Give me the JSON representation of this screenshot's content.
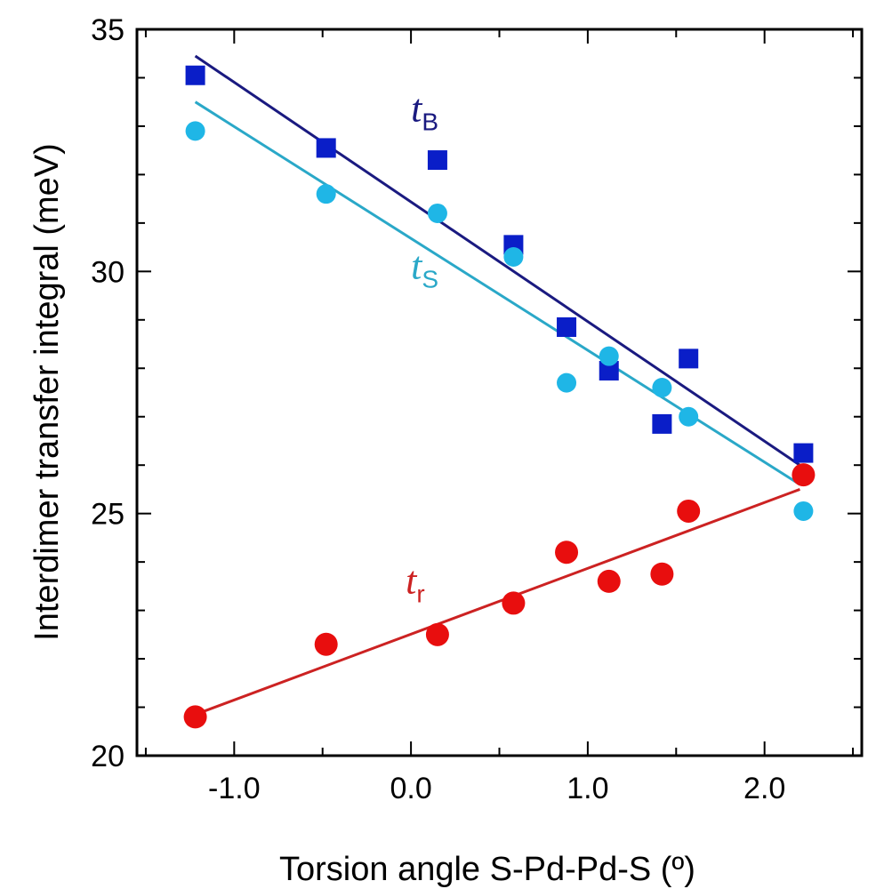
{
  "chart_data": {
    "type": "scatter",
    "title": "",
    "xlabel": "Torsion angle S-Pd-Pd-S (º)",
    "ylabel": "Interdimer transfer integral (meV)",
    "xlim": [
      -1.55,
      2.55
    ],
    "ylim": [
      20,
      35
    ],
    "x_ticks": [
      -1.0,
      0.0,
      1.0,
      2.0
    ],
    "x_tick_labels": [
      "-1.0",
      "0.0",
      "1.0",
      "2.0"
    ],
    "y_ticks": [
      20,
      25,
      30,
      35
    ],
    "y_tick_labels": [
      "20",
      "25",
      "30",
      "35"
    ],
    "x_minor_step": 0.5,
    "y_minor_step": 1,
    "grid": false,
    "series": [
      {
        "name": "tB",
        "label_main": "t",
        "label_sub": "B",
        "marker": "square",
        "color": "#0a1ec8",
        "fit_color": "#1a1a80",
        "x": [
          -1.22,
          -0.48,
          0.15,
          0.58,
          0.88,
          1.12,
          1.42,
          1.57,
          2.22
        ],
        "y": [
          34.05,
          32.55,
          32.3,
          30.55,
          28.85,
          27.95,
          26.85,
          28.2,
          26.25
        ],
        "fit": {
          "x": [
            -1.22,
            2.2
          ],
          "y": [
            34.45,
            26.0
          ]
        },
        "label_pos": {
          "x": 0.0,
          "y": 33.1
        }
      },
      {
        "name": "tS",
        "label_main": "t",
        "label_sub": "S",
        "marker": "circle",
        "color": "#1fb6e6",
        "fit_color": "#2aa8c8",
        "x": [
          -1.22,
          -0.48,
          0.15,
          0.58,
          0.88,
          1.12,
          1.42,
          1.57,
          2.22
        ],
        "y": [
          32.9,
          31.6,
          31.2,
          30.3,
          27.7,
          28.25,
          27.6,
          27.0,
          25.05
        ],
        "fit": {
          "x": [
            -1.22,
            2.2
          ],
          "y": [
            33.5,
            25.6
          ]
        },
        "label_pos": {
          "x": 0.0,
          "y": 29.85
        }
      },
      {
        "name": "tr",
        "label_main": "t",
        "label_sub": "r",
        "marker": "circle",
        "color": "#e80e0e",
        "fit_color": "#cc2222",
        "x": [
          -1.22,
          -0.48,
          0.15,
          0.58,
          0.88,
          1.12,
          1.42,
          1.57,
          2.22
        ],
        "y": [
          20.8,
          22.3,
          22.5,
          23.15,
          24.2,
          23.6,
          23.75,
          25.05,
          25.8
        ],
        "fit": {
          "x": [
            -1.22,
            2.2
          ],
          "y": [
            20.85,
            25.5
          ]
        },
        "label_pos": {
          "x": -0.03,
          "y": 23.35
        }
      }
    ]
  }
}
